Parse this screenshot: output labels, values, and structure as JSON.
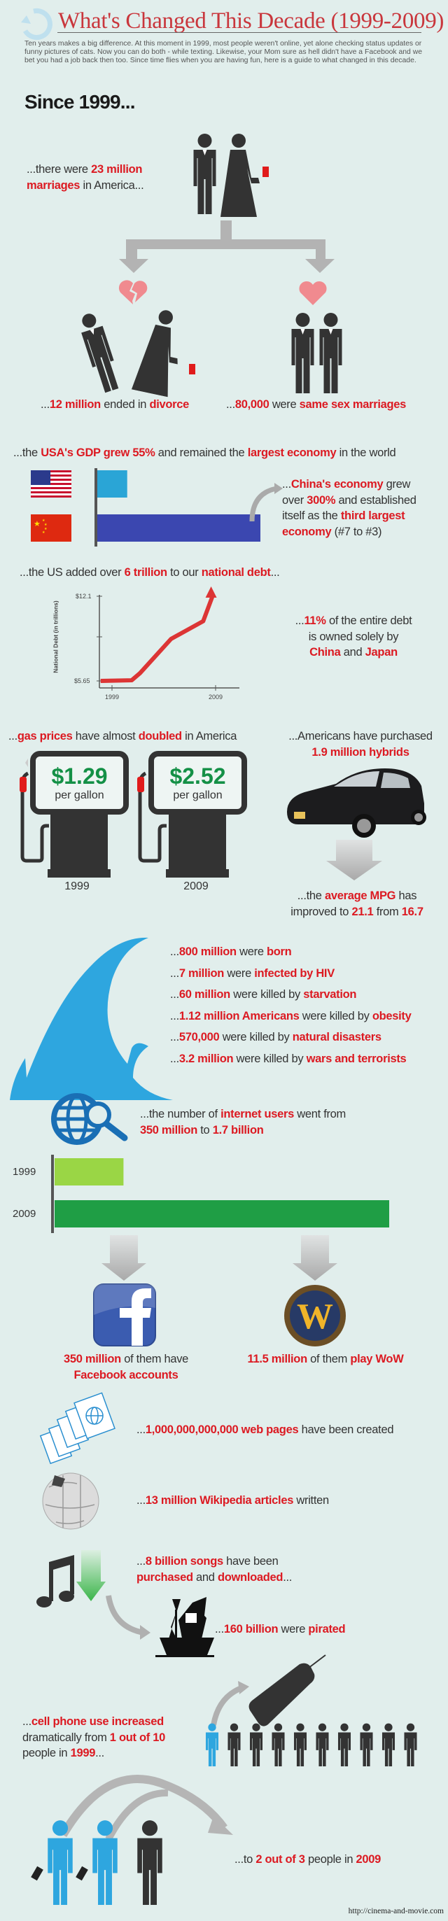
{
  "header": {
    "title": "What's Changed This Decade (1999-2009)",
    "intro": "Ten years makes a big difference. At this moment in 1999, most people weren't online, yet alone checking status updates or funny pictures of cats. Now you can do both - while texting. Likewise, your Mom sure as hell didn't have a Facebook and we bet you had a job back then too. Since time flies when you are having fun, here is a guide to what changed in this decade.",
    "since": "Since 1999..."
  },
  "colors": {
    "background": "#e1eeec",
    "highlight": "#dc1a22",
    "title": "#c9363c",
    "figure": "#333333",
    "accent_blue": "#2ea6df",
    "price_green": "#149046"
  },
  "marriage": {
    "intro": [
      [
        {
          "t": "...there were "
        },
        {
          "t": "23 million",
          "h": true
        }
      ],
      [
        {
          "t": "marriages",
          "h": true
        },
        {
          "t": " in America..."
        }
      ]
    ],
    "divorce": [
      [
        {
          "t": "..."
        },
        {
          "t": "12 million",
          "h": true
        },
        {
          "t": " ended in "
        },
        {
          "t": "divorce",
          "h": true
        }
      ]
    ],
    "same_sex": [
      [
        {
          "t": "..."
        },
        {
          "t": "80,000",
          "h": true
        },
        {
          "t": " were "
        },
        {
          "t": "same sex marriages",
          "h": true
        }
      ]
    ]
  },
  "economy": {
    "gdp": [
      [
        {
          "t": "...the "
        },
        {
          "t": "USA's GDP grew 55%",
          "h": true
        },
        {
          "t": " and remained the "
        },
        {
          "t": "largest economy",
          "h": true
        },
        {
          "t": " in the world"
        }
      ]
    ],
    "china": [
      [
        {
          "t": "..."
        },
        {
          "t": "China's economy",
          "h": true
        },
        {
          "t": " grew"
        }
      ],
      [
        {
          "t": "over "
        },
        {
          "t": "300%",
          "h": true
        },
        {
          "t": " and established"
        }
      ],
      [
        {
          "t": "itself as the "
        },
        {
          "t": "third largest",
          "h": true
        }
      ],
      [
        {
          "t": "economy",
          "h": true
        },
        {
          "t": " (#7 to #3)"
        }
      ]
    ]
  },
  "debt": {
    "headline": [
      [
        {
          "t": "...the US added over "
        },
        {
          "t": "6 trillion",
          "h": true
        },
        {
          "t": " to our "
        },
        {
          "t": "national debt",
          "h": true
        },
        {
          "t": "..."
        }
      ]
    ],
    "owned": [
      [
        {
          "t": "..."
        },
        {
          "t": "11%",
          "h": true
        },
        {
          "t": " of the entire debt"
        }
      ],
      [
        {
          "t": "is owned solely by"
        }
      ],
      [
        {
          "t": "China",
          "h": true
        },
        {
          "t": " and "
        },
        {
          "t": "Japan",
          "h": true
        }
      ]
    ]
  },
  "gas": {
    "headline": [
      [
        {
          "t": "..."
        },
        {
          "t": "gas prices",
          "h": true
        },
        {
          "t": " have almost "
        },
        {
          "t": "doubled",
          "h": true
        },
        {
          "t": " in America"
        }
      ]
    ],
    "pumps": [
      {
        "price": "$1.29",
        "unit": "per gallon",
        "year": "1999"
      },
      {
        "price": "$2.52",
        "unit": "per gallon",
        "year": "2009"
      }
    ]
  },
  "hybrids": {
    "headline": [
      [
        {
          "t": "...Americans have purchased"
        }
      ],
      [
        {
          "t": "1.9 million hybrids",
          "h": true
        }
      ]
    ],
    "mpg": [
      [
        {
          "t": "...the "
        },
        {
          "t": "average MPG",
          "h": true
        },
        {
          "t": " has"
        }
      ],
      [
        {
          "t": "improved to "
        },
        {
          "t": "21.1",
          "h": true
        },
        {
          "t": " from "
        },
        {
          "t": "16.7",
          "h": true
        }
      ]
    ]
  },
  "population": {
    "items": [
      [
        [
          {
            "t": "..."
          },
          {
            "t": "800 million",
            "h": true
          },
          {
            "t": " were "
          },
          {
            "t": "born",
            "h": true
          }
        ]
      ],
      [
        [
          {
            "t": "..."
          },
          {
            "t": "7 million",
            "h": true
          },
          {
            "t": " were "
          },
          {
            "t": "infected by HIV",
            "h": true
          }
        ]
      ],
      [
        [
          {
            "t": "..."
          },
          {
            "t": "60 million",
            "h": true
          },
          {
            "t": " were killed by "
          },
          {
            "t": "starvation",
            "h": true
          }
        ]
      ],
      [
        [
          {
            "t": "..."
          },
          {
            "t": "1.12 million Americans",
            "h": true
          },
          {
            "t": " were killed by "
          },
          {
            "t": "obesity",
            "h": true
          }
        ]
      ],
      [
        [
          {
            "t": "..."
          },
          {
            "t": "570,000",
            "h": true
          },
          {
            "t": " were killed by "
          },
          {
            "t": "natural disasters",
            "h": true
          }
        ]
      ],
      [
        [
          {
            "t": "..."
          },
          {
            "t": "3.2 million",
            "h": true
          },
          {
            "t": " were killed by "
          },
          {
            "t": "wars and terrorists",
            "h": true
          }
        ]
      ]
    ]
  },
  "internet": {
    "headline": [
      [
        {
          "t": "...the number of "
        },
        {
          "t": "internet users",
          "h": true
        },
        {
          "t": " went from"
        }
      ],
      [
        {
          "t": "350 million",
          "h": true
        },
        {
          "t": " to "
        },
        {
          "t": "1.7 billion",
          "h": true
        }
      ]
    ],
    "facebook": [
      [
        {
          "t": "350 million",
          "h": true
        },
        {
          "t": " of them have"
        }
      ],
      [
        {
          "t": "Facebook accounts",
          "h": true
        }
      ]
    ],
    "wow": [
      [
        {
          "t": "11.5 million",
          "h": true
        },
        {
          "t": " of them "
        },
        {
          "t": "play WoW",
          "h": true
        }
      ]
    ],
    "web_pages": [
      [
        {
          "t": "..."
        },
        {
          "t": "1,000,000,000,000 web pages",
          "h": true
        },
        {
          "t": " have been created"
        }
      ]
    ],
    "wikipedia": [
      [
        {
          "t": "..."
        },
        {
          "t": "13 million Wikipedia articles",
          "h": true
        },
        {
          "t": " written"
        }
      ]
    ],
    "songs": [
      [
        {
          "t": "..."
        },
        {
          "t": "8 billion songs",
          "h": true
        },
        {
          "t": " have been"
        }
      ],
      [
        {
          "t": "purchased",
          "h": true
        },
        {
          "t": " and "
        },
        {
          "t": "downloaded",
          "h": true
        },
        {
          "t": "..."
        }
      ]
    ],
    "pirated": [
      [
        {
          "t": "..."
        },
        {
          "t": "160 billion",
          "h": true
        },
        {
          "t": " were "
        },
        {
          "t": "pirated",
          "h": true
        }
      ]
    ]
  },
  "cellphones": {
    "from": [
      [
        {
          "t": "..."
        },
        {
          "t": "cell phone use increased",
          "h": true
        }
      ],
      [
        {
          "t": "dramatically from "
        },
        {
          "t": "1 out of 10",
          "h": true
        }
      ],
      [
        {
          "t": "people in "
        },
        {
          "t": "1999",
          "h": true
        },
        {
          "t": "..."
        }
      ]
    ],
    "to": [
      [
        {
          "t": "...to "
        },
        {
          "t": "2 out of 3",
          "h": true
        },
        {
          "t": " people in "
        },
        {
          "t": "2009",
          "h": true
        }
      ]
    ],
    "ratio_1999": [
      1,
      10
    ],
    "ratio_2009": [
      2,
      3
    ]
  },
  "footer": {
    "url": "http://cinema-and-movie.com"
  },
  "chart_data": [
    {
      "type": "bar",
      "categories": [
        "USA",
        "China"
      ],
      "values": [
        55,
        300
      ],
      "xlabel": "",
      "ylabel": "",
      "colors": [
        "#2aa5d6",
        "#3b47b0"
      ]
    },
    {
      "type": "line",
      "ylabel": "National Debt (in trillions)",
      "yticks": [
        "$5.65",
        "$12.1"
      ],
      "xticks": [
        "1999",
        "2009"
      ],
      "ylim": [
        5.65,
        12.1
      ],
      "x": [
        1997.9,
        2000.9,
        2001.7,
        2004.7,
        2007.8,
        2008.7
      ],
      "y": [
        5.65,
        5.7,
        6.24,
        8.85,
        10.2,
        12.1
      ],
      "color": "#dc3535"
    },
    {
      "type": "bar",
      "orientation": "horizontal",
      "categories": [
        "1999",
        "2009"
      ],
      "values": [
        350,
        1700
      ],
      "unit": "million internet users",
      "colors": [
        "#9ad645",
        "#1f9e45"
      ]
    }
  ]
}
